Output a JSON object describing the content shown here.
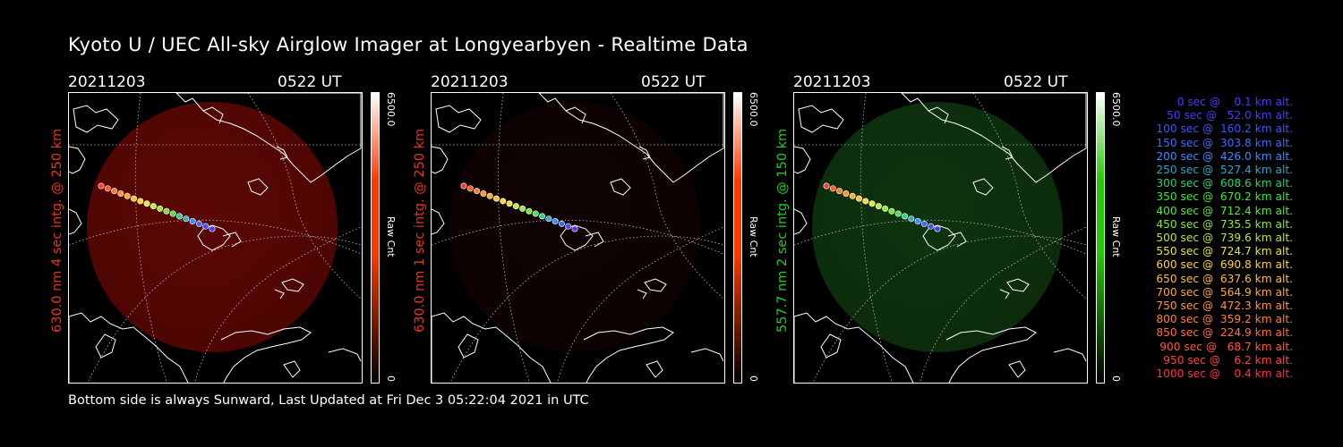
{
  "title": "Kyoto U / UEC All-sky Airglow Imager at Longyearbyen - Realtime Data",
  "footer": "Bottom side is always Sunward, Last Updated at Fri Dec  3 05:22:04 2021 in UTC",
  "panels": [
    {
      "date": "20211203",
      "time": "0522 UT",
      "channel_label": "630.0 nm  4 sec intg. @ 250 km",
      "label_color": "#e8341c",
      "cbar_max": "6500.0",
      "cbar_min": "0",
      "cbar_label": "Raw Cnt",
      "cbar_top_color": "#ff3a00",
      "airglow_color": "#7a0a05",
      "airglow_intensity": 0.75
    },
    {
      "date": "20211203",
      "time": "0522 UT",
      "channel_label": "630.0 nm  1 sec intg. @ 250 km",
      "label_color": "#e8341c",
      "cbar_max": "6500.0",
      "cbar_min": "0",
      "cbar_label": "Raw Cnt",
      "cbar_top_color": "#ff3a00",
      "airglow_color": "#2a0604",
      "airglow_intensity": 0.35
    },
    {
      "date": "20211203",
      "time": "0522 UT",
      "channel_label": "557.7 nm  2 sec intg. @ 150 km",
      "label_color": "#22cc22",
      "cbar_max": "6500.0",
      "cbar_min": "0",
      "cbar_label": "Raw Cnt",
      "cbar_top_color": "#22cc00",
      "airglow_color": "#0f3a10",
      "airglow_intensity": 0.9
    }
  ],
  "legend": [
    {
      "text": "0 sec @    0.1 km alt.",
      "color": "#4b3cff"
    },
    {
      "text": "50 sec @   52.0 km alt.",
      "color": "#4b3cff"
    },
    {
      "text": "100 sec @  160.2 km alt.",
      "color": "#3c55ff"
    },
    {
      "text": "150 sec @  303.8 km alt.",
      "color": "#3c6cff"
    },
    {
      "text": "200 sec @  426.0 km alt.",
      "color": "#3c8cff"
    },
    {
      "text": "250 sec @  527.4 km alt.",
      "color": "#2ea8c8"
    },
    {
      "text": "300 sec @  608.6 km alt.",
      "color": "#2ed070"
    },
    {
      "text": "350 sec @  670.2 km alt.",
      "color": "#3ce63c"
    },
    {
      "text": "400 sec @  712.4 km alt.",
      "color": "#5ae63c"
    },
    {
      "text": "450 sec @  735.5 km alt.",
      "color": "#88e83c"
    },
    {
      "text": "500 sec @  739.6 km alt.",
      "color": "#b8e83c"
    },
    {
      "text": "550 sec @  724.7 km alt.",
      "color": "#e6e63c"
    },
    {
      "text": "600 sec @  690.8 km alt.",
      "color": "#ffd23c"
    },
    {
      "text": "650 sec @  637.6 km alt.",
      "color": "#ffbe3c"
    },
    {
      "text": "700 sec @  564.9 km alt.",
      "color": "#ffa83c"
    },
    {
      "text": "750 sec @  472.3 km alt.",
      "color": "#ff963c"
    },
    {
      "text": "800 sec @  359.2 km alt.",
      "color": "#ff823c"
    },
    {
      "text": "850 sec @  224.9 km alt.",
      "color": "#ff6e3c"
    },
    {
      "text": "900 sec @   68.7 km alt.",
      "color": "#ff5a3c"
    },
    {
      "text": "950 sec @    6.2 km alt.",
      "color": "#ff463c"
    },
    {
      "text": "1000 sec @    0.4 km alt.",
      "color": "#ff323c"
    }
  ]
}
